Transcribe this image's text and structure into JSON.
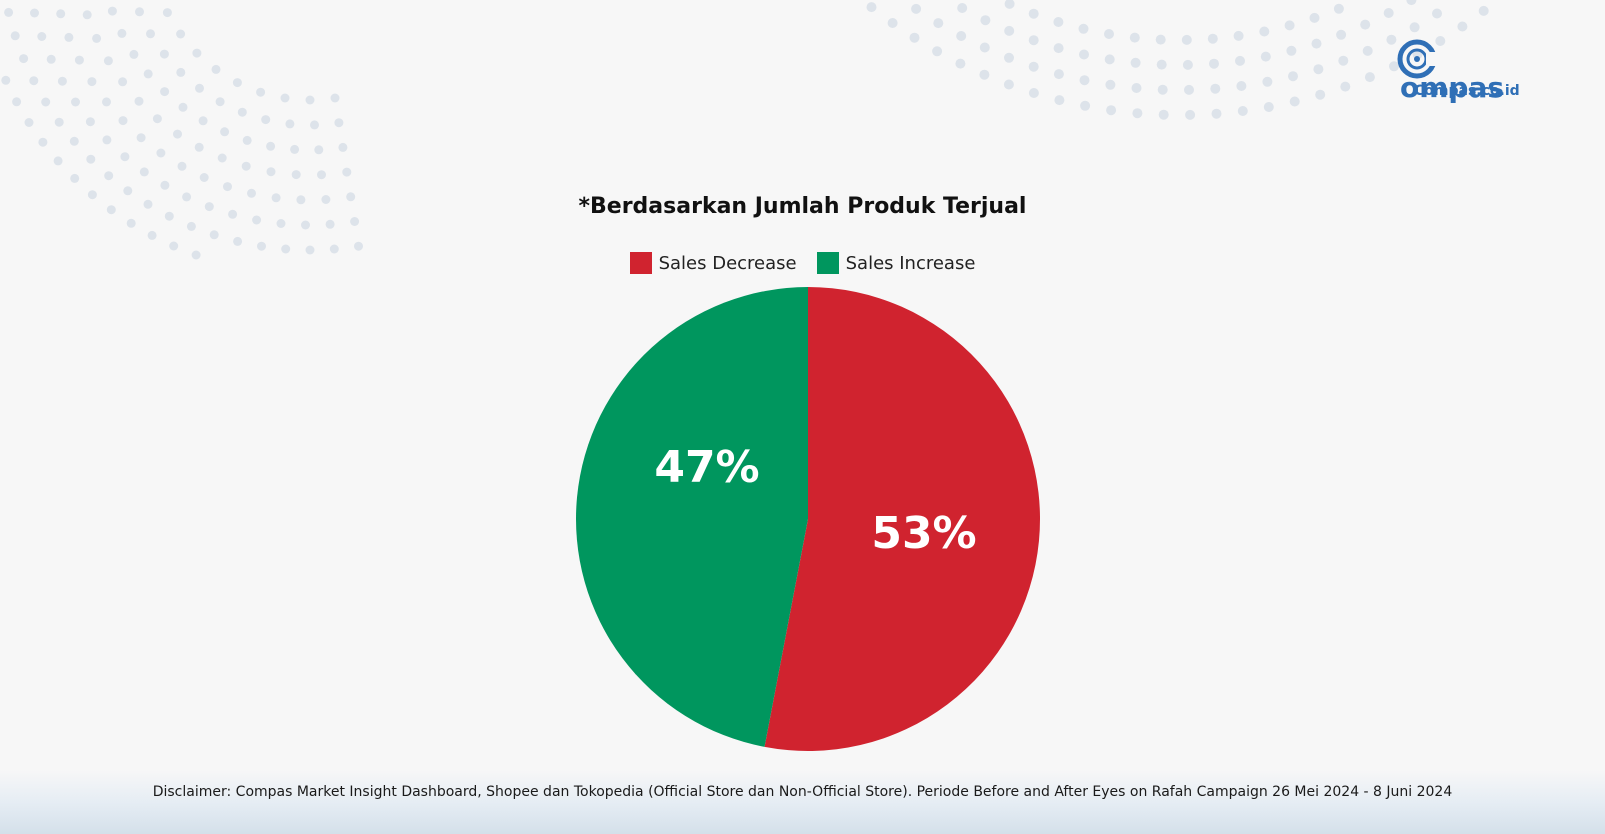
{
  "brand": {
    "logo_text": "Compas",
    "url": "Compas.co.id",
    "color": "#2f6fb6"
  },
  "chart_data": {
    "type": "pie",
    "title": "*Berdasarkan Jumlah Produk Terjual",
    "categories": [
      "Sales Decrease",
      "Sales Increase"
    ],
    "values": [
      53,
      47
    ],
    "labels": [
      "53%",
      "47%"
    ],
    "colors": [
      "#d0232f",
      "#00965e"
    ],
    "legend_position": "top"
  },
  "footer": {
    "disclaimer": "Disclaimer: Compas Market Insight Dashboard, Shopee dan Tokopedia (Official Store dan Non-Official Store). Periode Before and After Eyes on Rafah Campaign 26 Mei 2024 - 8 Juni 2024"
  }
}
